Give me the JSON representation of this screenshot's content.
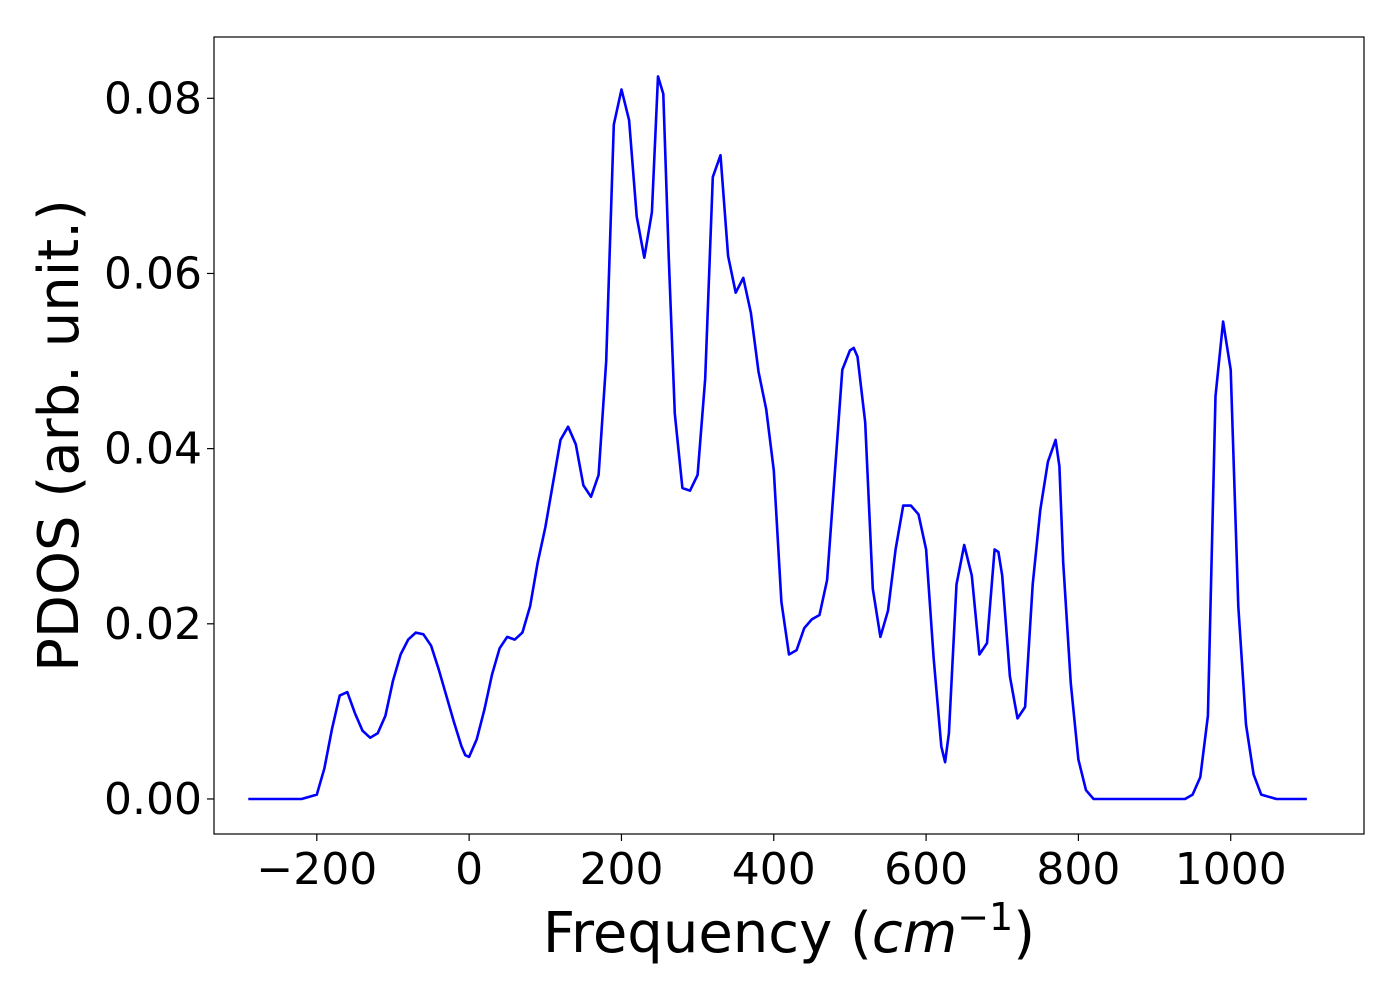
{
  "chart_data": {
    "type": "line",
    "title": "",
    "xlabel": "Frequency (cm⁻¹)",
    "xlabel_text": "Frequency (",
    "xlabel_unit": "cm",
    "xlabel_exp": "−1",
    "xlabel_close": ")",
    "ylabel": "PDOS (arb. unit.)",
    "xlim": [
      -335,
      1175
    ],
    "ylim": [
      -0.004,
      0.087
    ],
    "xticks": [
      -200,
      0,
      200,
      400,
      600,
      800,
      1000
    ],
    "xtick_labels": [
      "−200",
      "0",
      "200",
      "400",
      "600",
      "800",
      "1000"
    ],
    "yticks": [
      0.0,
      0.02,
      0.04,
      0.06,
      0.08
    ],
    "ytick_labels": [
      "0.00",
      "0.02",
      "0.04",
      "0.06",
      "0.08"
    ],
    "grid": false,
    "legend": null,
    "series": [
      {
        "color": "#0000ff",
        "x": [
          -290,
          -250,
          -220,
          -200,
          -190,
          -180,
          -170,
          -160,
          -150,
          -140,
          -130,
          -120,
          -110,
          -100,
          -90,
          -80,
          -70,
          -60,
          -50,
          -40,
          -30,
          -20,
          -10,
          -5,
          0,
          10,
          20,
          30,
          40,
          50,
          60,
          70,
          80,
          90,
          100,
          110,
          120,
          130,
          140,
          150,
          160,
          170,
          180,
          190,
          200,
          210,
          220,
          230,
          240,
          248,
          255,
          262,
          270,
          280,
          290,
          300,
          310,
          320,
          330,
          340,
          350,
          360,
          370,
          380,
          390,
          400,
          410,
          420,
          430,
          440,
          450,
          460,
          470,
          480,
          490,
          500,
          505,
          510,
          520,
          530,
          540,
          550,
          560,
          570,
          580,
          590,
          600,
          610,
          620,
          625,
          630,
          640,
          650,
          660,
          670,
          680,
          690,
          695,
          700,
          710,
          720,
          730,
          740,
          750,
          760,
          770,
          775,
          780,
          790,
          800,
          810,
          820,
          830,
          850,
          900,
          940,
          950,
          960,
          970,
          980,
          990,
          1000,
          1010,
          1020,
          1030,
          1040,
          1060,
          1100
        ],
        "y": [
          0,
          0,
          0,
          0.0005,
          0.0035,
          0.008,
          0.0118,
          0.0122,
          0.0098,
          0.0078,
          0.007,
          0.0075,
          0.0095,
          0.0135,
          0.0165,
          0.0182,
          0.019,
          0.0188,
          0.0175,
          0.0148,
          0.0118,
          0.0088,
          0.006,
          0.005,
          0.0048,
          0.0068,
          0.0102,
          0.0142,
          0.0172,
          0.0185,
          0.0182,
          0.019,
          0.022,
          0.027,
          0.031,
          0.036,
          0.041,
          0.0425,
          0.0405,
          0.0358,
          0.0345,
          0.037,
          0.05,
          0.077,
          0.081,
          0.0775,
          0.0665,
          0.0618,
          0.067,
          0.0825,
          0.0805,
          0.062,
          0.044,
          0.0355,
          0.0352,
          0.037,
          0.048,
          0.071,
          0.0735,
          0.062,
          0.0578,
          0.0595,
          0.0555,
          0.0488,
          0.0445,
          0.0375,
          0.0225,
          0.0165,
          0.017,
          0.0195,
          0.0205,
          0.021,
          0.025,
          0.037,
          0.049,
          0.0512,
          0.0515,
          0.0505,
          0.043,
          0.024,
          0.0185,
          0.0215,
          0.0285,
          0.0335,
          0.0335,
          0.0325,
          0.0285,
          0.016,
          0.006,
          0.0042,
          0.0075,
          0.0245,
          0.029,
          0.0255,
          0.0165,
          0.0178,
          0.0285,
          0.0282,
          0.0255,
          0.014,
          0.0092,
          0.0105,
          0.0245,
          0.033,
          0.0385,
          0.041,
          0.038,
          0.027,
          0.0132,
          0.0045,
          0.001,
          0,
          0,
          0,
          0,
          0,
          0.0005,
          0.0025,
          0.0095,
          0.046,
          0.0545,
          0.049,
          0.022,
          0.0085,
          0.0028,
          0.0005,
          0,
          0
        ]
      }
    ]
  }
}
